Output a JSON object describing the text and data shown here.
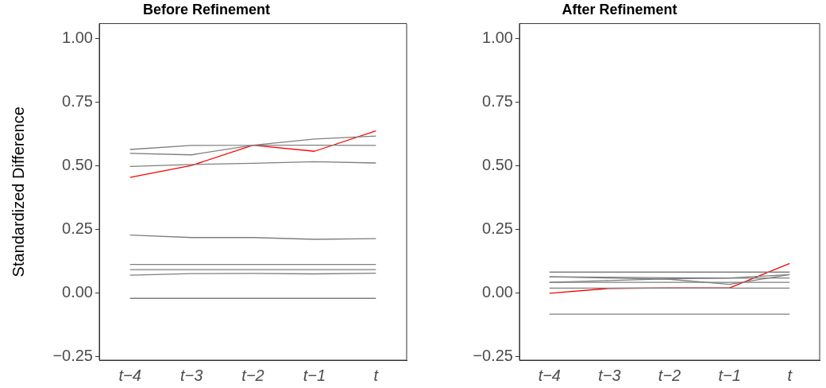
{
  "chart_data": [
    {
      "type": "line",
      "title": "Before Refinement",
      "ylabel": "Standardized Difference",
      "categories": [
        "t−4",
        "t−3",
        "t−2",
        "t−1",
        "t"
      ],
      "ylim": [
        -0.265,
        1.058
      ],
      "yticks": [
        {
          "value": -0.25,
          "label": "−0.25"
        },
        {
          "value": 0,
          "label": "0.00"
        },
        {
          "value": 0.25,
          "label": "0.25"
        },
        {
          "value": 0.5,
          "label": "0.50"
        },
        {
          "value": 0.75,
          "label": "0.75"
        },
        {
          "value": 1,
          "label": "1.00"
        }
      ],
      "grid": false,
      "legend": false,
      "marker": "none",
      "line_style": "solid",
      "series": [
        {
          "color": "#7f7f7f",
          "values": [
            0.563,
            0.579,
            0.58,
            0.604,
            0.616
          ]
        },
        {
          "color": "#7f7f7f",
          "values": [
            0.548,
            0.542,
            0.58,
            0.58,
            0.579
          ]
        },
        {
          "color": "#7f7f7f",
          "values": [
            0.496,
            0.504,
            0.509,
            0.515,
            0.51
          ]
        },
        {
          "color": "#7f7f7f",
          "values": [
            0.227,
            0.217,
            0.217,
            0.21,
            0.213
          ]
        },
        {
          "color": "#7f7f7f",
          "values": [
            0.111,
            0.111,
            0.111,
            0.111,
            0.111
          ]
        },
        {
          "color": "#7f7f7f",
          "values": [
            0.091,
            0.091,
            0.091,
            0.091,
            0.091
          ]
        },
        {
          "color": "#7f7f7f",
          "values": [
            0.069,
            0.075,
            0.076,
            0.074,
            0.077
          ]
        },
        {
          "color": "#7f7f7f",
          "values": [
            -0.022,
            -0.022,
            -0.022,
            -0.022,
            -0.022
          ]
        },
        {
          "color": "#ff0000",
          "values": [
            0.453,
            0.5,
            0.58,
            0.556,
            0.636
          ]
        }
      ]
    },
    {
      "type": "line",
      "title": "After Refinement",
      "categories": [
        "t−4",
        "t−3",
        "t−2",
        "t−1",
        "t"
      ],
      "ylim": [
        -0.265,
        1.058
      ],
      "yticks": [
        {
          "value": -0.25,
          "label": "−0.25"
        },
        {
          "value": 0,
          "label": "0.00"
        },
        {
          "value": 0.25,
          "label": "0.25"
        },
        {
          "value": 0.5,
          "label": "0.50"
        },
        {
          "value": 0.75,
          "label": "0.75"
        },
        {
          "value": 1,
          "label": "1.00"
        }
      ],
      "grid": false,
      "legend": false,
      "marker": "none",
      "line_style": "solid",
      "series": [
        {
          "color": "#7f7f7f",
          "values": [
            0.081,
            0.081,
            0.081,
            0.081,
            0.081
          ]
        },
        {
          "color": "#7f7f7f",
          "values": [
            0.063,
            0.061,
            0.059,
            0.058,
            0.071
          ]
        },
        {
          "color": "#7f7f7f",
          "values": [
            0.063,
            0.058,
            0.053,
            0.033,
            0.071
          ]
        },
        {
          "color": "#7f7f7f",
          "values": [
            0.041,
            0.048,
            0.055,
            0.057,
            0.058
          ]
        },
        {
          "color": "#7f7f7f",
          "values": [
            0.041,
            0.041,
            0.041,
            0.041,
            0.041
          ]
        },
        {
          "color": "#7f7f7f",
          "values": [
            0.018,
            0.018,
            0.018,
            0.018,
            0.018
          ]
        },
        {
          "color": "#7f7f7f",
          "values": [
            -0.084,
            -0.084,
            -0.084,
            -0.084,
            -0.084
          ]
        },
        {
          "color": "#ff0000",
          "values": [
            -0.002,
            0.017,
            0.019,
            0.019,
            0.115
          ]
        }
      ]
    }
  ]
}
